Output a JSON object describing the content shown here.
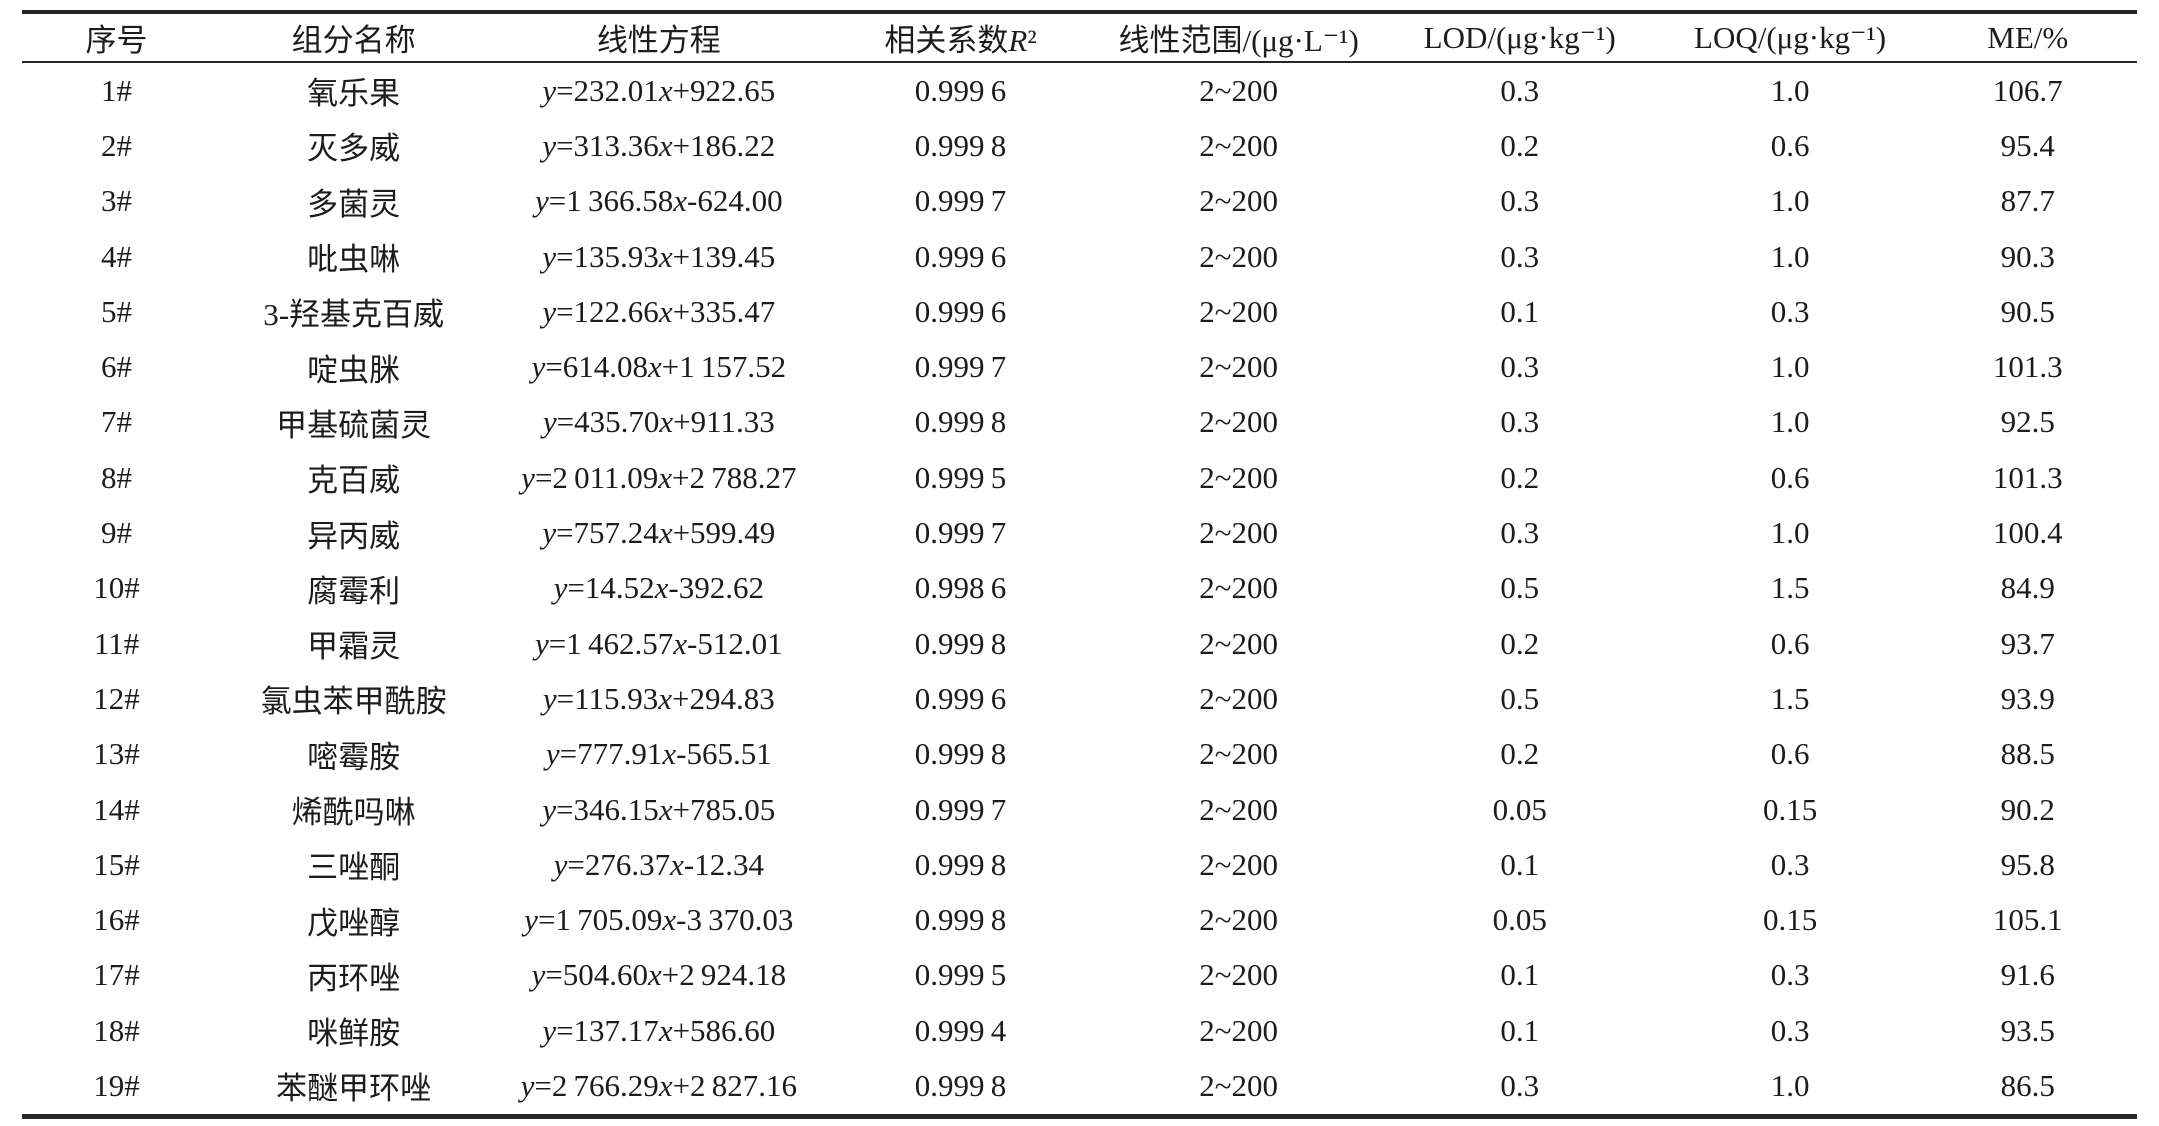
{
  "table": {
    "columns": [
      {
        "label": "序号"
      },
      {
        "label": "组分名称"
      },
      {
        "label": "线性方程"
      },
      {
        "label": "相关系数R²"
      },
      {
        "label": "线性范围/(μg·L⁻¹)"
      },
      {
        "label": "LOD/(μg·kg⁻¹)"
      },
      {
        "label": "LOQ/(μg·kg⁻¹)"
      },
      {
        "label": "ME/%"
      }
    ],
    "rows": [
      [
        "1#",
        "氧乐果",
        "y=232.01x+922.65",
        "0.999 6",
        "2~200",
        "0.3",
        "1.0",
        "106.7"
      ],
      [
        "2#",
        "灭多威",
        "y=313.36x+186.22",
        "0.999 8",
        "2~200",
        "0.2",
        "0.6",
        "95.4"
      ],
      [
        "3#",
        "多菌灵",
        "y=1 366.58x-624.00",
        "0.999 7",
        "2~200",
        "0.3",
        "1.0",
        "87.7"
      ],
      [
        "4#",
        "吡虫啉",
        "y=135.93x+139.45",
        "0.999 6",
        "2~200",
        "0.3",
        "1.0",
        "90.3"
      ],
      [
        "5#",
        "3-羟基克百威",
        "y=122.66x+335.47",
        "0.999 6",
        "2~200",
        "0.1",
        "0.3",
        "90.5"
      ],
      [
        "6#",
        "啶虫脒",
        "y=614.08x+1 157.52",
        "0.999 7",
        "2~200",
        "0.3",
        "1.0",
        "101.3"
      ],
      [
        "7#",
        "甲基硫菌灵",
        "y=435.70x+911.33",
        "0.999 8",
        "2~200",
        "0.3",
        "1.0",
        "92.5"
      ],
      [
        "8#",
        "克百威",
        "y=2 011.09x+2 788.27",
        "0.999 5",
        "2~200",
        "0.2",
        "0.6",
        "101.3"
      ],
      [
        "9#",
        "异丙威",
        "y=757.24x+599.49",
        "0.999 7",
        "2~200",
        "0.3",
        "1.0",
        "100.4"
      ],
      [
        "10#",
        "腐霉利",
        "y=14.52x-392.62",
        "0.998 6",
        "2~200",
        "0.5",
        "1.5",
        "84.9"
      ],
      [
        "11#",
        "甲霜灵",
        "y=1 462.57x-512.01",
        "0.999 8",
        "2~200",
        "0.2",
        "0.6",
        "93.7"
      ],
      [
        "12#",
        "氯虫苯甲酰胺",
        "y=115.93x+294.83",
        "0.999 6",
        "2~200",
        "0.5",
        "1.5",
        "93.9"
      ],
      [
        "13#",
        "嘧霉胺",
        "y=777.91x-565.51",
        "0.999 8",
        "2~200",
        "0.2",
        "0.6",
        "88.5"
      ],
      [
        "14#",
        "烯酰吗啉",
        "y=346.15x+785.05",
        "0.999 7",
        "2~200",
        "0.05",
        "0.15",
        "90.2"
      ],
      [
        "15#",
        "三唑酮",
        "y=276.37x-12.34",
        "0.999 8",
        "2~200",
        "0.1",
        "0.3",
        "95.8"
      ],
      [
        "16#",
        "戊唑醇",
        "y=1 705.09x-3 370.03",
        "0.999 8",
        "2~200",
        "0.05",
        "0.15",
        "105.1"
      ],
      [
        "17#",
        "丙环唑",
        "y=504.60x+2 924.18",
        "0.999 5",
        "2~200",
        "0.1",
        "0.3",
        "91.6"
      ],
      [
        "18#",
        "咪鲜胺",
        "y=137.17x+586.60",
        "0.999 4",
        "2~200",
        "0.1",
        "0.3",
        "93.5"
      ],
      [
        "19#",
        "苯醚甲环唑",
        "y=2 766.29x+2 827.16",
        "0.999 8",
        "2~200",
        "0.3",
        "1.0",
        "86.5"
      ]
    ]
  }
}
